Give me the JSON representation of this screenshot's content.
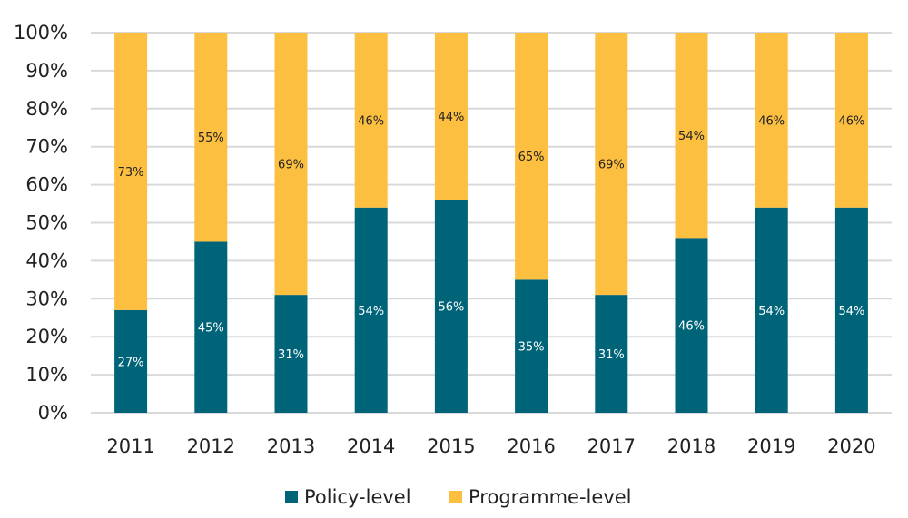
{
  "chart_data": {
    "type": "bar",
    "stacked": true,
    "categories": [
      "2011",
      "2012",
      "2013",
      "2014",
      "2015",
      "2016",
      "2017",
      "2018",
      "2019",
      "2020"
    ],
    "series": [
      {
        "name": "Policy-level",
        "color": "#006478",
        "values": [
          27,
          45,
          31,
          54,
          56,
          35,
          31,
          46,
          54,
          54
        ]
      },
      {
        "name": "Programme-level",
        "color": "#FDBF3F",
        "values": [
          73,
          55,
          69,
          46,
          44,
          65,
          69,
          54,
          46,
          46
        ]
      }
    ],
    "ylim": [
      0,
      100
    ],
    "yticks": [
      "0%",
      "10%",
      "20%",
      "30%",
      "40%",
      "50%",
      "60%",
      "70%",
      "80%",
      "90%",
      "100%"
    ],
    "grid": true,
    "legend": "bottom",
    "title": "",
    "xlabel": "",
    "ylabel": ""
  }
}
